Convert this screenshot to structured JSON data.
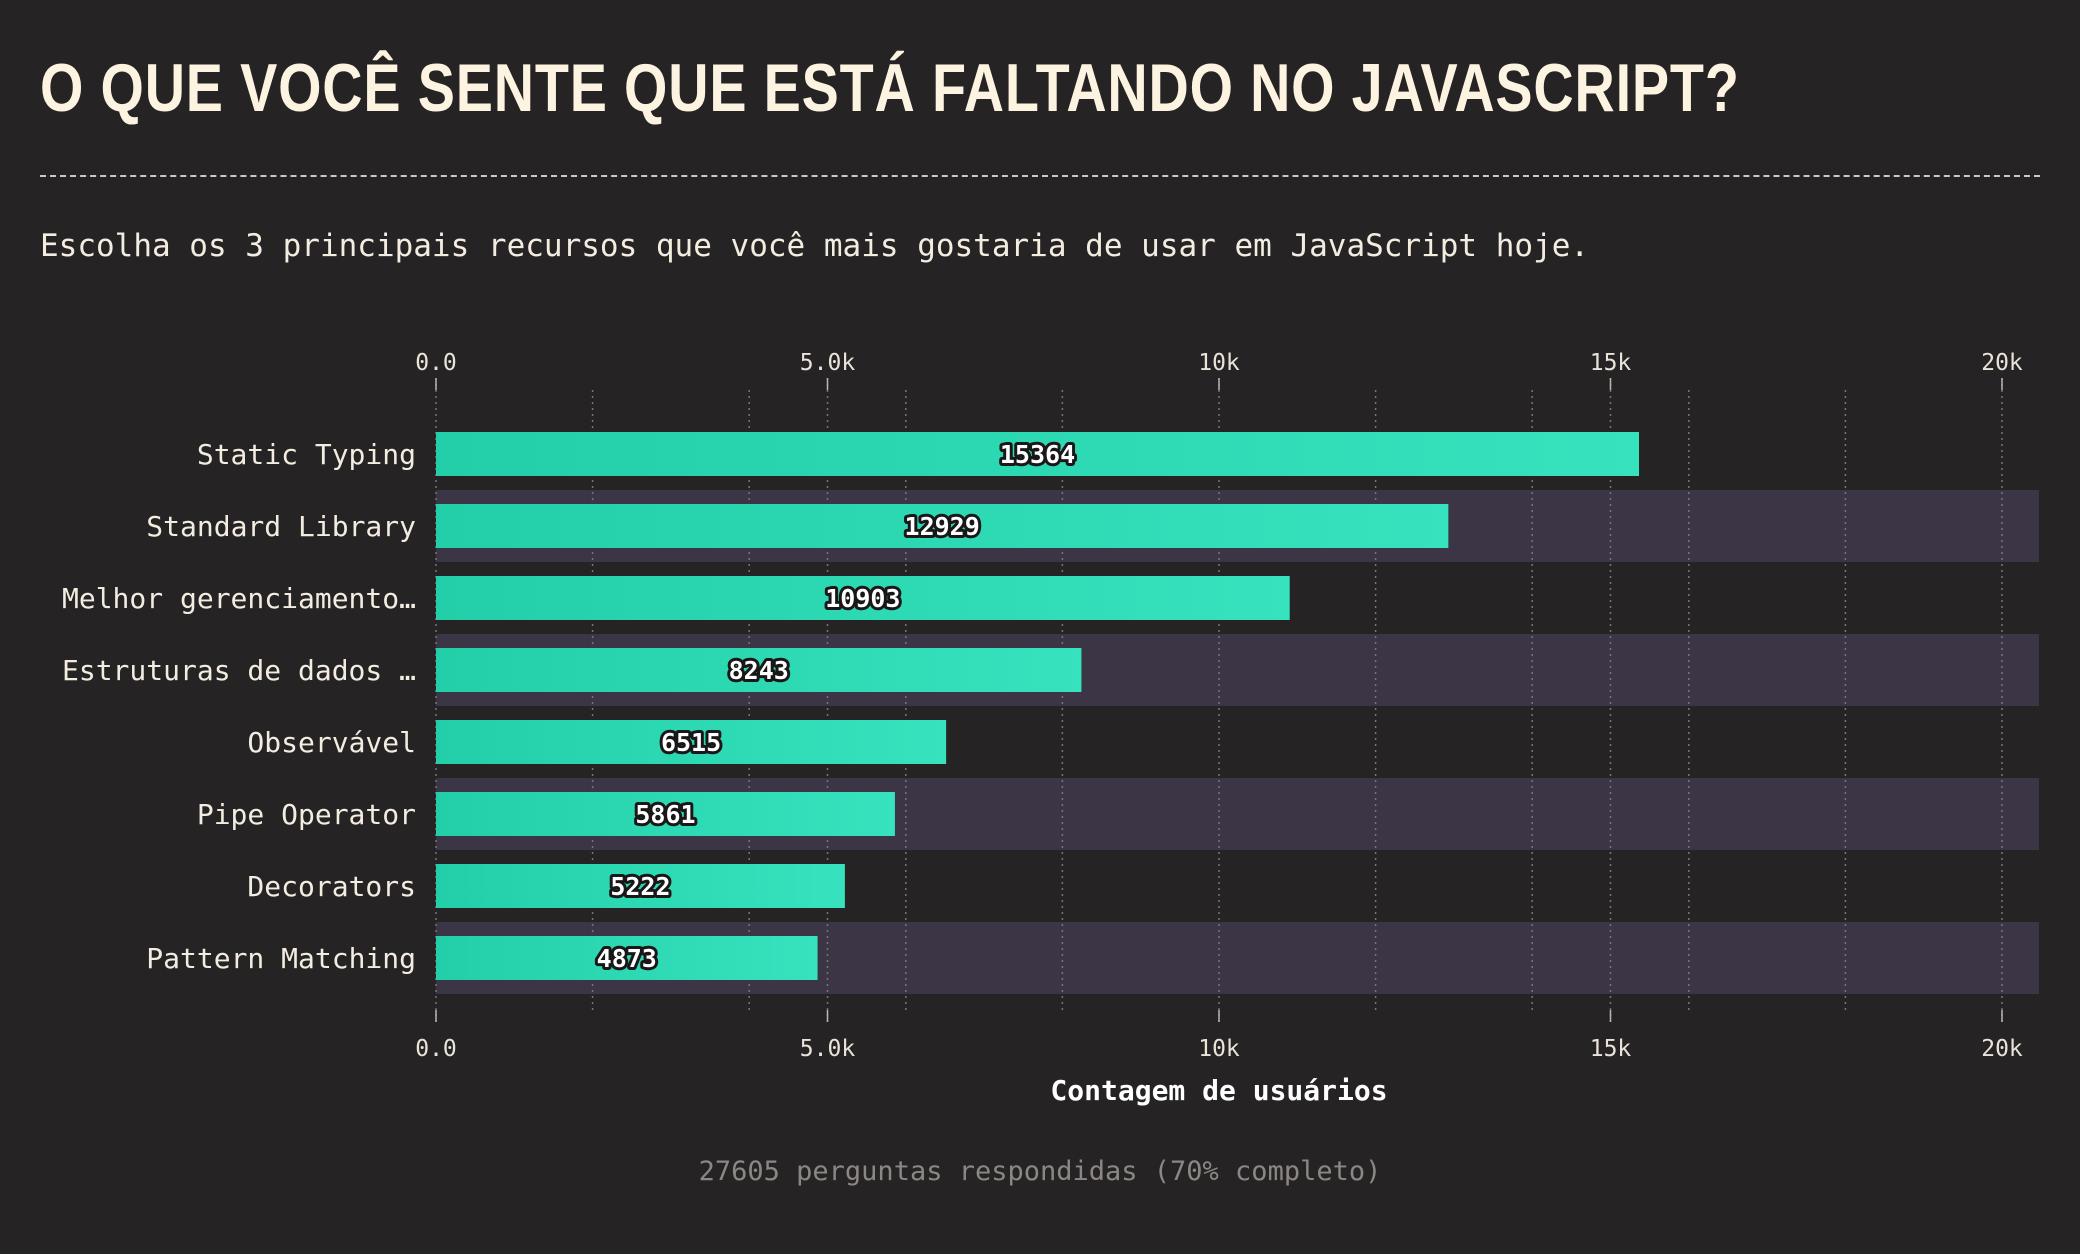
{
  "title": "O QUE VOCÊ SENTE QUE ESTÁ FALTANDO NO JAVASCRIPT?",
  "subtitle": "Escolha os 3 principais recursos que você mais gostaria de usar em JavaScript hoje.",
  "footer": "27605 perguntas respondidas (70% completo)",
  "colors": {
    "background": "#262325",
    "bar_start": "#22cfa8",
    "bar_end": "#37e3be",
    "row_band": "#3b3545",
    "grid": "#7a7478"
  },
  "chart_data": {
    "type": "bar",
    "orientation": "horizontal",
    "categories": [
      "Static Typing",
      "Standard Library",
      "Melhor gerenciamento…",
      "Estruturas de dados …",
      "Observável",
      "Pipe Operator",
      "Decorators",
      "Pattern Matching"
    ],
    "values": [
      15364,
      12929,
      10903,
      8243,
      6515,
      5861,
      5222,
      4873
    ],
    "xlabel": "Contagem de usuários",
    "xlim": [
      0,
      20500
    ],
    "ticks": [
      0,
      5000,
      10000,
      15000,
      20000
    ],
    "tick_labels": [
      "0.0",
      "5.0k",
      "10k",
      "15k",
      "20k"
    ],
    "minor_gridlines": [
      2000,
      4000,
      6000,
      8000,
      12000,
      14000,
      16000,
      18000
    ],
    "grid": true
  }
}
